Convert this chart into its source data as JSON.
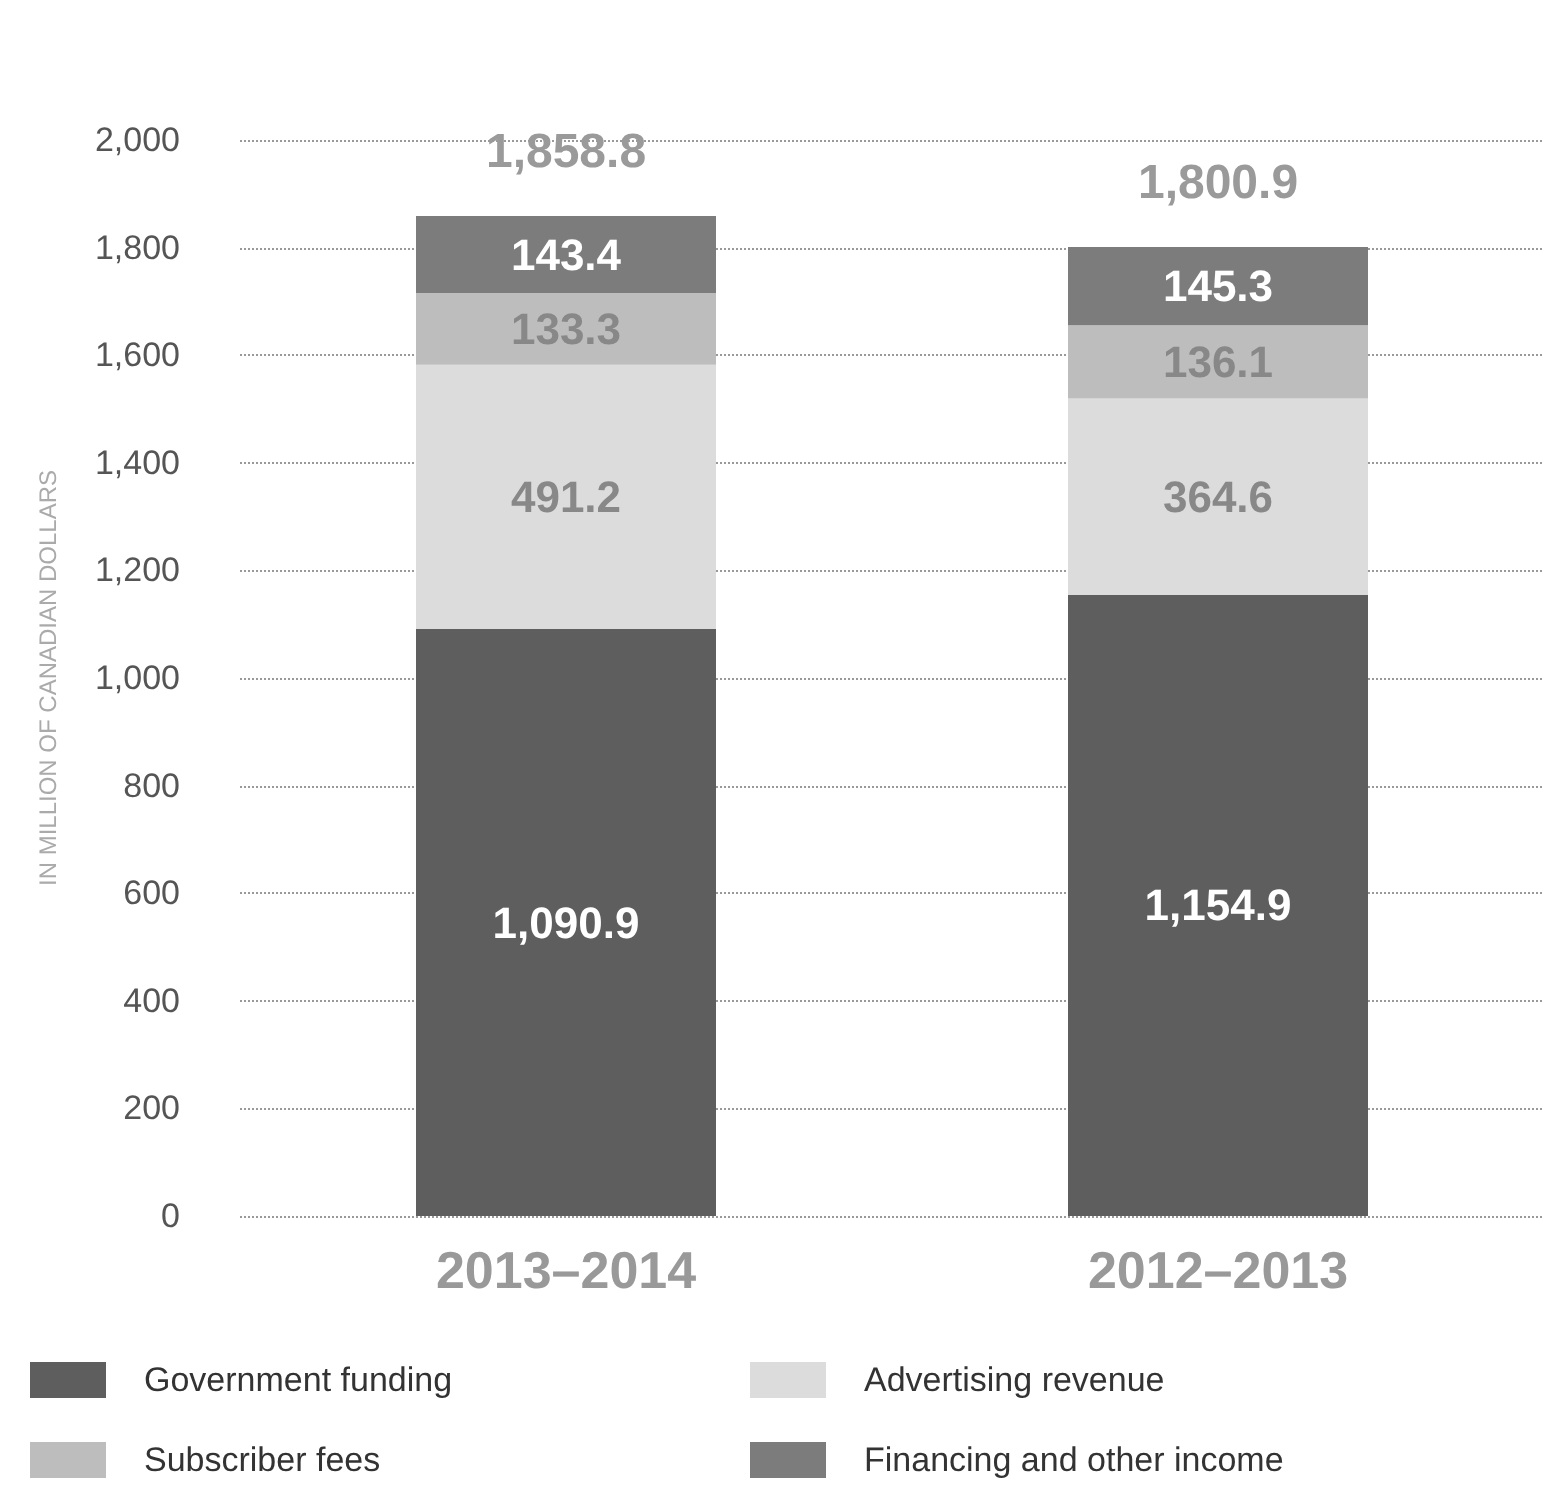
{
  "chart_data": {
    "type": "bar",
    "stacked": true,
    "ylabel": "IN MILLION OF CANADIAN DOLLARS",
    "categories": [
      "2013–2014",
      "2012–2013"
    ],
    "series": [
      {
        "name": "Government funding",
        "color": "#5e5e5e",
        "values": [
          1090.9,
          1154.9
        ],
        "value_labels": [
          "1,090.9",
          "1,154.9"
        ]
      },
      {
        "name": "Advertising revenue",
        "color": "#dcdcdc",
        "values": [
          491.2,
          364.6
        ],
        "value_labels": [
          "491.2",
          "364.6"
        ]
      },
      {
        "name": "Subscriber fees",
        "color": "#bdbdbd",
        "values": [
          133.3,
          136.1
        ],
        "value_labels": [
          "133.3",
          "136.1"
        ]
      },
      {
        "name": "Financing and other income",
        "color": "#7c7c7c",
        "values": [
          143.4,
          145.3
        ],
        "value_labels": [
          "143.4",
          "145.3"
        ]
      }
    ],
    "totals": [
      "1,858.8",
      "1,800.9"
    ],
    "ylim": [
      0,
      2000
    ],
    "yticks": [
      0,
      200,
      400,
      600,
      800,
      {
        "value": 1000,
        "label": "1,000"
      },
      {
        "value": 1200,
        "label": "1,200"
      },
      {
        "value": 1400,
        "label": "1,400"
      },
      {
        "value": 1600,
        "label": "1,600"
      },
      {
        "value": 1800,
        "label": "1,800"
      },
      {
        "value": 2000,
        "label": "2,000"
      }
    ],
    "grid": "y",
    "legend": "bottom"
  }
}
